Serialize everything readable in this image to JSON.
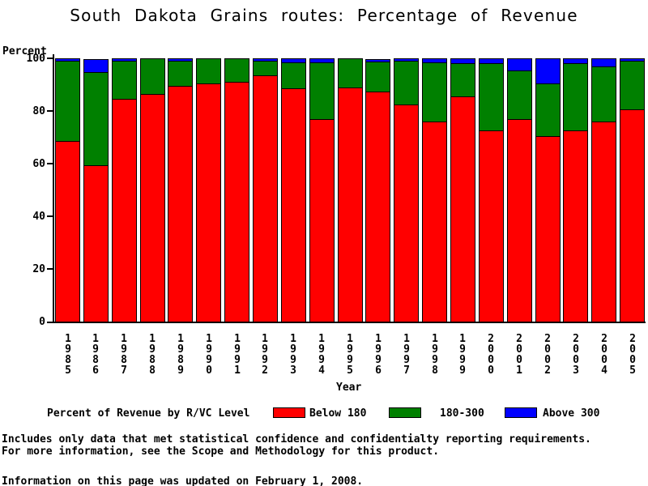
{
  "chart_data": {
    "type": "bar",
    "stacked": true,
    "title": "South Dakota Grains routes: Percentage of Revenue",
    "xlabel": "Year",
    "ylabel": "Percent",
    "ylim": [
      0,
      100
    ],
    "yticks": [
      0,
      20,
      40,
      60,
      80,
      100
    ],
    "grid": false,
    "legend_title": "Percent of Revenue by R/VC Level",
    "legend_position": "bottom",
    "categories": [
      "1985",
      "1986",
      "1987",
      "1988",
      "1989",
      "1990",
      "1991",
      "1992",
      "1993",
      "1994",
      "1995",
      "1996",
      "1997",
      "1998",
      "1999",
      "2000",
      "2001",
      "2002",
      "2003",
      "2004",
      "2005"
    ],
    "series": [
      {
        "name": "Below 180",
        "color": "#ff0000",
        "values": [
          68.5,
          59.5,
          84.5,
          86.5,
          89.5,
          90.5,
          91,
          93.5,
          88.5,
          77,
          89,
          87.5,
          82.5,
          76,
          85.5,
          72.5,
          77,
          70.5,
          72.5,
          76,
          80.5
        ]
      },
      {
        "name": "180-300",
        "color": "#008000",
        "values": [
          30.5,
          35.5,
          14.5,
          13.5,
          9.5,
          9.5,
          9,
          5.5,
          10,
          21.5,
          11,
          11.5,
          16.5,
          22.5,
          12.5,
          25.5,
          18.5,
          20,
          25.5,
          21,
          18.5
        ]
      },
      {
        "name": "Above 300",
        "color": "#0000ff",
        "values": [
          1,
          5,
          1,
          0,
          1,
          0,
          0,
          1,
          1.5,
          1.5,
          0,
          1,
          1,
          1.5,
          2,
          2,
          4.5,
          9.5,
          2,
          3,
          1
        ]
      }
    ]
  },
  "footnotes": {
    "line1": "Includes only data that met statistical confidence and confidentialty reporting requirements.",
    "line2": "For more information, see the Scope and Methodology for this product.",
    "updated": "Information on this page was updated on February 1, 2008."
  }
}
